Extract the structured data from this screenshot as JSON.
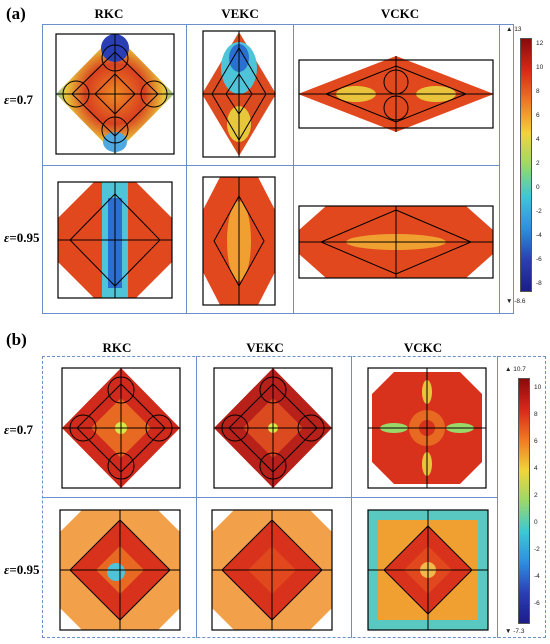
{
  "panels": [
    {
      "label": "(a)",
      "columns": [
        "RKC",
        "VEKC",
        "VCKC"
      ],
      "rows": [
        {
          "symbol": "ε",
          "value": "=0.7"
        },
        {
          "symbol": "ε",
          "value": "=0.95"
        }
      ],
      "colorbar": {
        "max_label": "▲ 13",
        "min_label": "▼ -8.6",
        "ticks": [
          "12",
          "10",
          "8",
          "6",
          "4",
          "2",
          "0",
          "-2",
          "-4",
          "-6",
          "-8"
        ]
      }
    },
    {
      "label": "(b)",
      "columns": [
        "RKC",
        "VEKC",
        "VCKC"
      ],
      "rows": [
        {
          "symbol": "ε",
          "value": "=0.7"
        },
        {
          "symbol": "ε",
          "value": "=0.95"
        }
      ],
      "colorbar": {
        "max_label": "▲ 10.7",
        "min_label": "▼ -7.3",
        "ticks": [
          "10",
          "8",
          "6",
          "4",
          "2",
          "0",
          "-2",
          "-4",
          "-6"
        ]
      }
    }
  ],
  "colors": {
    "frame": "#6d8fc9",
    "high": "#c0251c",
    "mid": "#e9dd3a",
    "low": "#2b3fb5"
  }
}
